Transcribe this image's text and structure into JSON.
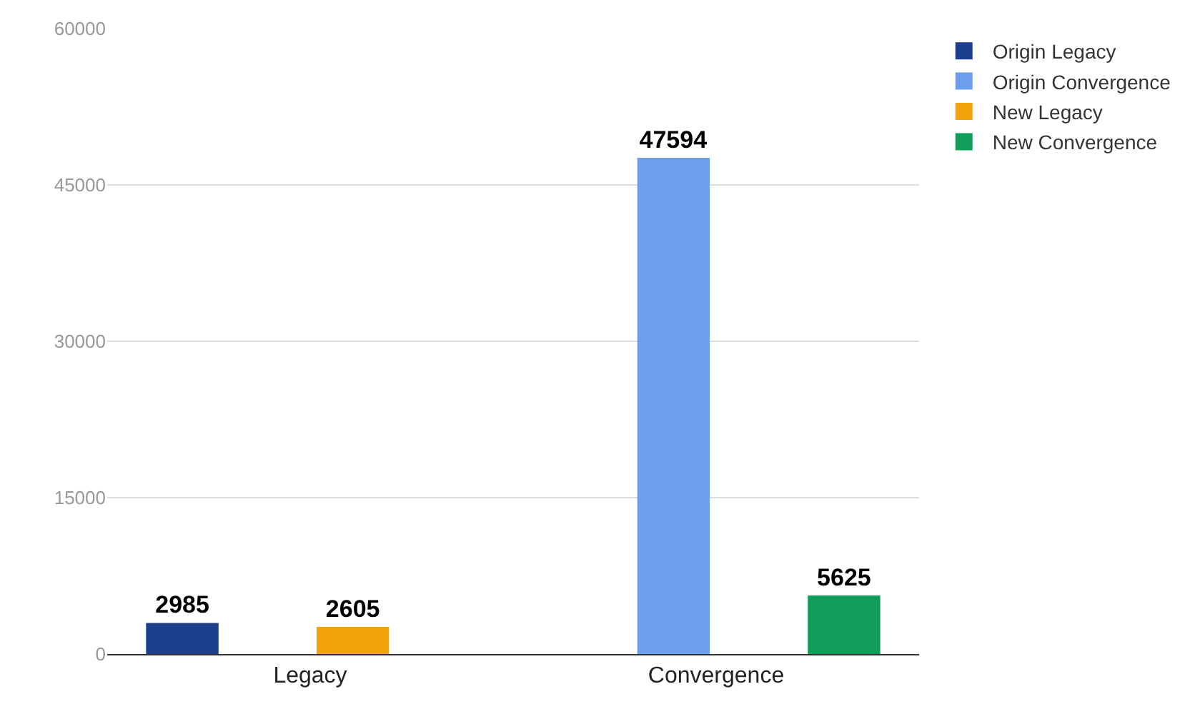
{
  "chart_data": {
    "type": "bar",
    "categories": [
      "Legacy",
      "Convergence"
    ],
    "series": [
      {
        "name": "Origin Legacy",
        "color": "#1c3f8c",
        "values": [
          2985,
          null
        ]
      },
      {
        "name": "Origin Convergence",
        "color": "#6d9eeb",
        "values": [
          null,
          47594
        ]
      },
      {
        "name": "New Legacy",
        "color": "#f0a30a",
        "values": [
          2605,
          null
        ]
      },
      {
        "name": "New Convergence",
        "color": "#109d59",
        "values": [
          null,
          5625
        ]
      }
    ],
    "ylim": [
      0,
      60000
    ],
    "yticks": [
      0,
      15000,
      30000,
      45000,
      60000
    ],
    "grid": "y",
    "legend": "right",
    "data_labels": true
  }
}
